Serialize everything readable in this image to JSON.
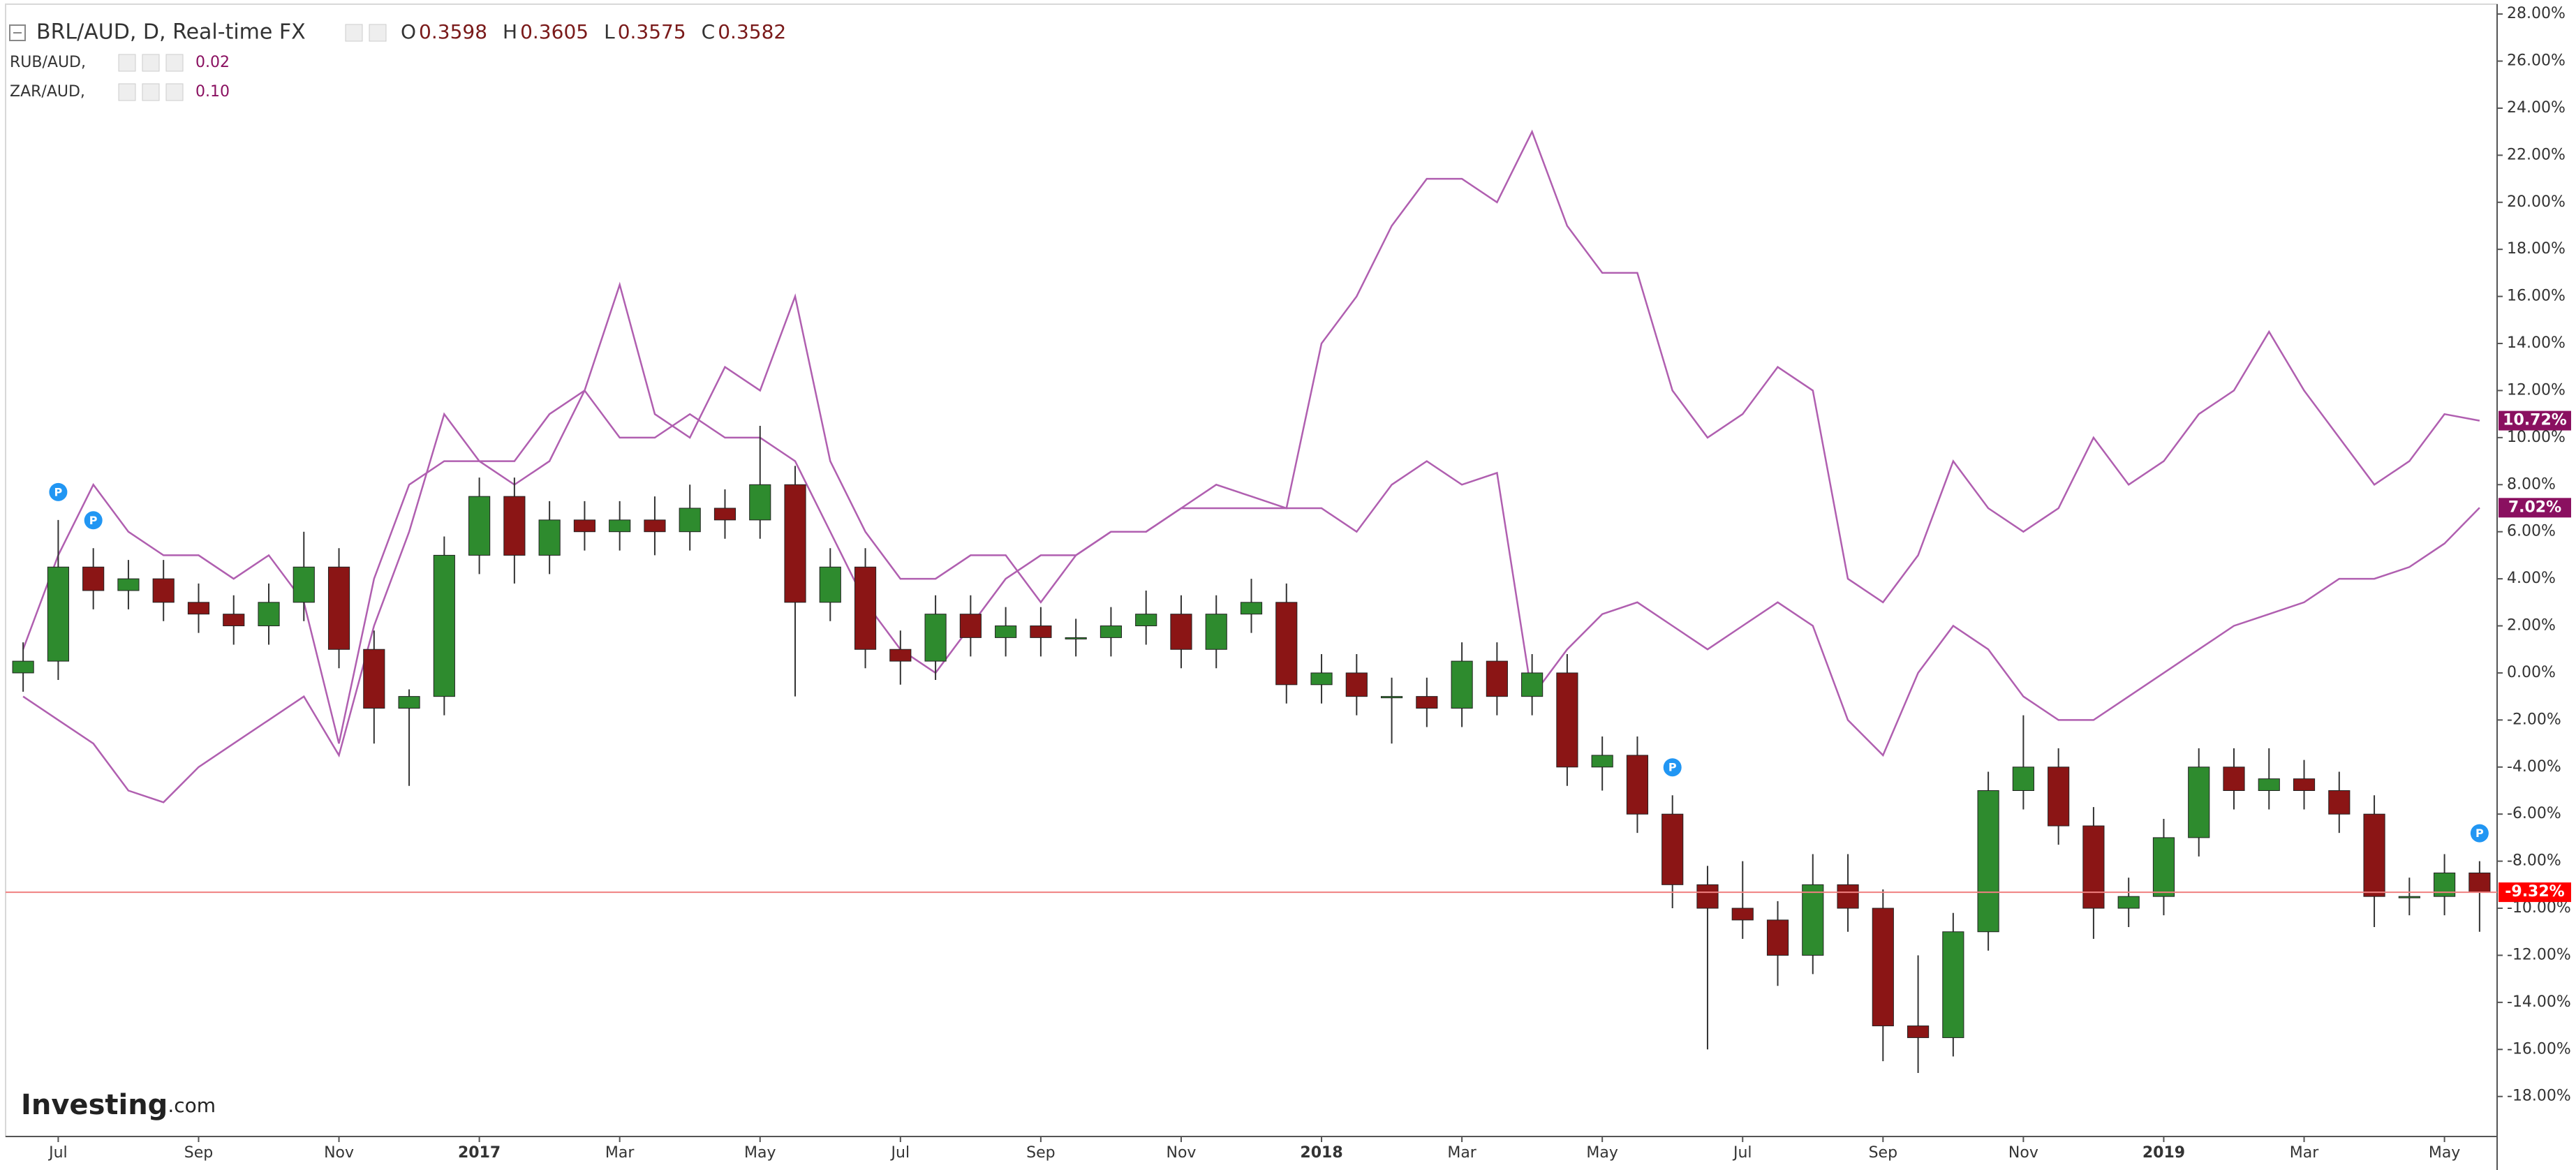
{
  "chart_data": {
    "type": "candlestick",
    "title": "BRL/AUD, D, Real-time FX",
    "ohlc_header": [
      {
        "label": "O",
        "value": 0.3598
      },
      {
        "label": "H",
        "value": 0.3605
      },
      {
        "label": "L",
        "value": 0.3575
      },
      {
        "label": "C",
        "value": 0.3582
      }
    ],
    "categories": [
      null,
      "Jul",
      null,
      null,
      null,
      "Sep",
      null,
      null,
      null,
      "Nov",
      null,
      null,
      null,
      "2017",
      null,
      null,
      null,
      "Mar",
      null,
      null,
      null,
      "May",
      null,
      null,
      null,
      "Jul",
      null,
      null,
      null,
      "Sep",
      null,
      null,
      null,
      "Nov",
      null,
      null,
      null,
      "2018",
      null,
      null,
      null,
      "Mar",
      null,
      null,
      null,
      "May",
      null,
      null,
      null,
      "Jul",
      null,
      null,
      null,
      "Sep",
      null,
      null,
      null,
      "Nov",
      null,
      null,
      null,
      "2019",
      null,
      null,
      null,
      "Mar",
      null,
      null,
      null,
      "May",
      null
    ],
    "open": [
      0,
      0.5,
      4.5,
      3.5,
      4,
      3,
      2.5,
      2,
      3,
      4.5,
      1,
      -1.5,
      -1,
      5,
      7.5,
      5,
      6.5,
      6,
      6.5,
      6,
      7,
      6.5,
      8,
      3,
      4.5,
      1,
      0.5,
      2.5,
      1.5,
      2,
      1.5,
      1.5,
      2,
      2.5,
      1,
      2.5,
      3,
      -0.5,
      0,
      -1,
      -1,
      -1.5,
      0.5,
      -1,
      0,
      -4,
      -3.5,
      -6,
      -9,
      -10,
      -10.5,
      -12,
      -9,
      -10,
      -15,
      -15.5,
      -11,
      -5,
      -4,
      -6.5,
      -10,
      -9.5,
      -7,
      -4,
      -5,
      -4.5,
      -5,
      -6,
      -9.5,
      -9.5,
      -8.5
    ],
    "high": [
      1.3,
      6.5,
      5.3,
      4.8,
      4.8,
      3.8,
      3.3,
      3.8,
      6,
      5.3,
      1.8,
      -0.7,
      5.8,
      8.3,
      8.3,
      7.3,
      7.3,
      7.3,
      7.5,
      8,
      7.8,
      10.5,
      8.8,
      5.3,
      5.3,
      1.8,
      3.3,
      3.3,
      2.8,
      2.8,
      2.3,
      2.8,
      3.5,
      3.3,
      3.3,
      4,
      3.8,
      0.8,
      0.8,
      -0.2,
      -0.2,
      1.3,
      1.3,
      0.8,
      0.8,
      -2.7,
      -2.7,
      -5.2,
      -8.2,
      -8,
      -9.7,
      -7.7,
      -7.7,
      -9.2,
      -12,
      -10.2,
      -4.2,
      -1.8,
      -3.2,
      -5.7,
      -8.7,
      -6.2,
      -3.2,
      -3.2,
      -3.2,
      -3.7,
      -4.2,
      -5.2,
      -8.7,
      -7.7,
      -8
    ],
    "low": [
      -0.8,
      -0.3,
      2.7,
      2.7,
      2.2,
      1.7,
      1.2,
      1.2,
      2.2,
      0.2,
      -3,
      -4.8,
      -1.8,
      4.2,
      3.8,
      4.2,
      5.2,
      5.2,
      5,
      5.2,
      5.7,
      5.7,
      -1,
      2.2,
      0.2,
      -0.5,
      -0.3,
      0.7,
      0.7,
      0.7,
      0.7,
      0.7,
      1.2,
      0.2,
      0.2,
      1.7,
      -1.3,
      -1.3,
      -1.8,
      -3,
      -2.3,
      -2.3,
      -1.8,
      -1.8,
      -4.8,
      -5,
      -6.8,
      -10,
      -16,
      -11.3,
      -13.3,
      -12.8,
      -11,
      -16.5,
      -17,
      -16.3,
      -11.8,
      -5.8,
      -7.3,
      -11.3,
      -10.8,
      -10.3,
      -7.8,
      -5.8,
      -5.8,
      -5.8,
      -6.8,
      -10.8,
      -10.3,
      -10.3,
      -11
    ],
    "close": [
      0.5,
      4.5,
      3.5,
      4,
      3,
      2.5,
      2,
      3,
      4.5,
      1,
      -1.5,
      -1,
      5,
      7.5,
      5,
      6.5,
      6,
      6.5,
      6,
      7,
      6.5,
      8,
      3,
      4.5,
      1,
      0.5,
      2.5,
      1.5,
      2,
      1.5,
      1.5,
      2,
      2.5,
      1,
      2.5,
      3,
      -0.5,
      0,
      -1,
      -1,
      -1.5,
      0.5,
      -1,
      0,
      -4,
      -3.5,
      -6,
      -9,
      -10,
      -10.5,
      -12,
      -9,
      -10,
      -15,
      -15.5,
      -11,
      -5,
      -4,
      -6.5,
      -10,
      -9.5,
      -7,
      -4,
      -5,
      -4.5,
      -5,
      -6,
      -9.5,
      -9.5,
      -8.5,
      -9.32
    ],
    "up_color": "#2e8b2e",
    "down_color": "#8b1515",
    "last_value_label": "-9.32%",
    "last_color": "#ff0000",
    "series": [
      {
        "name": "RUB/AUD,",
        "legend_value": "0.02",
        "type": "line",
        "color": "#b05fb0",
        "label_color": "#8a1060",
        "last_value_label": "7.02%",
        "values": [
          1,
          5,
          8,
          6,
          5,
          5,
          4,
          5,
          3,
          -3,
          4,
          8,
          9,
          9,
          9,
          11,
          12,
          10,
          10,
          11,
          10,
          10,
          9,
          6,
          3,
          1,
          0,
          2,
          4,
          5,
          5,
          6,
          6,
          7,
          7,
          7,
          7,
          7,
          6,
          8,
          9,
          8,
          8.5,
          -1,
          1,
          2.5,
          3,
          2,
          1,
          2,
          3,
          2,
          -2,
          -3.5,
          0,
          2,
          1,
          -1,
          -2,
          -2,
          -1,
          0,
          1,
          2,
          2.5,
          3,
          4,
          4,
          4.5,
          5.5,
          7.02
        ]
      },
      {
        "name": "ZAR/AUD,",
        "legend_value": "0.10",
        "type": "line",
        "color": "#b05fb0",
        "label_color": "#8a1060",
        "last_value_label": "10.72%",
        "values": [
          -1,
          -2,
          -3,
          -5,
          -5.5,
          -4,
          -3,
          -2,
          -1,
          -3.5,
          2,
          6,
          11,
          9,
          8,
          9,
          12,
          16.5,
          11,
          10,
          13,
          12,
          16,
          9,
          6,
          4,
          4,
          5,
          5,
          3,
          5,
          6,
          6,
          7,
          8,
          7.5,
          7,
          14,
          16,
          19,
          21,
          21,
          20,
          23,
          19,
          17,
          17,
          12,
          10,
          11,
          13,
          12,
          4,
          3,
          5,
          9,
          7,
          6,
          7,
          10,
          8,
          9,
          11,
          12,
          14.5,
          12,
          10,
          8,
          9,
          11,
          10.72
        ]
      }
    ],
    "ylim": [
      -19.7,
      28.3
    ],
    "yticks": [
      {
        "value": -18,
        "label": "-18.00%"
      },
      {
        "value": -16,
        "label": "-16.00%"
      },
      {
        "value": -14,
        "label": "-14.00%"
      },
      {
        "value": -12,
        "label": "-12.00%"
      },
      {
        "value": -10,
        "label": "-10.00%"
      },
      {
        "value": -8,
        "label": "-8.00%"
      },
      {
        "value": -6,
        "label": "-6.00%"
      },
      {
        "value": -4,
        "label": "-4.00%"
      },
      {
        "value": -2,
        "label": "-2.00%"
      },
      {
        "value": 0,
        "label": "0.00%"
      },
      {
        "value": 2,
        "label": "2.00%"
      },
      {
        "value": 4,
        "label": "4.00%"
      },
      {
        "value": 6,
        "label": "6.00%"
      },
      {
        "value": 8,
        "label": "8.00%"
      },
      {
        "value": 10,
        "label": "10.00%"
      },
      {
        "value": 12,
        "label": "12.00%"
      },
      {
        "value": 14,
        "label": "14.00%"
      },
      {
        "value": 16,
        "label": "16.00%"
      },
      {
        "value": 18,
        "label": "18.00%"
      },
      {
        "value": 20,
        "label": "20.00%"
      },
      {
        "value": 22,
        "label": "22.00%"
      },
      {
        "value": 24,
        "label": "24.00%"
      },
      {
        "value": 26,
        "label": "26.00%"
      },
      {
        "value": 28,
        "label": "28.00%"
      }
    ],
    "event_marker": "P",
    "watermark": {
      "brand": "Investing",
      "suffix": ".com"
    }
  }
}
